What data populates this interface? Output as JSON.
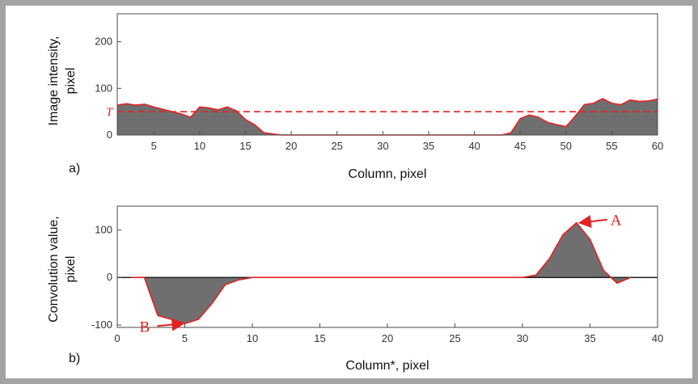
{
  "colors": {
    "fill": "#6f6f6f",
    "trace": "#e32222",
    "threshold": "#e32222",
    "axis": "#4a4a4a"
  },
  "chart_data": [
    {
      "type": "area",
      "panel": "a)",
      "xlabel": "Column, pixel",
      "ylabel": [
        "Image intensity,",
        "pixel"
      ],
      "xlim": [
        1,
        60
      ],
      "ylim": [
        0,
        260
      ],
      "xticks": [
        5,
        10,
        15,
        20,
        25,
        30,
        35,
        40,
        45,
        50,
        55,
        60
      ],
      "yticks": [
        0,
        100,
        200
      ],
      "threshold": {
        "label": "T",
        "value": 50
      },
      "x": [
        1,
        2,
        3,
        4,
        5,
        6,
        7,
        8,
        9,
        10,
        11,
        12,
        13,
        14,
        15,
        16,
        17,
        18,
        19,
        20,
        25,
        30,
        35,
        40,
        43,
        44,
        45,
        46,
        47,
        48,
        49,
        50,
        51,
        52,
        53,
        54,
        55,
        56,
        57,
        58,
        59,
        60
      ],
      "values": [
        64,
        67,
        64,
        66,
        60,
        55,
        50,
        45,
        38,
        60,
        58,
        54,
        60,
        52,
        33,
        22,
        5,
        2,
        0,
        0,
        0,
        0,
        0,
        0,
        0,
        5,
        35,
        43,
        38,
        27,
        22,
        18,
        40,
        65,
        68,
        78,
        68,
        65,
        75,
        72,
        73,
        77
      ]
    },
    {
      "type": "area",
      "panel": "b)",
      "xlabel": "Column*, pixel",
      "ylabel": [
        "Convolution value,",
        "pixel"
      ],
      "xlim": [
        0,
        40
      ],
      "ylim": [
        -105,
        150
      ],
      "xticks": [
        0,
        5,
        10,
        15,
        20,
        25,
        30,
        35,
        40
      ],
      "yticks": [
        -100,
        0,
        100
      ],
      "x": [
        1,
        2,
        3,
        4,
        5,
        6,
        7,
        8,
        9,
        10,
        30,
        31,
        32,
        33,
        34,
        35,
        36,
        37,
        38
      ],
      "values": [
        0,
        0,
        -80,
        -88,
        -97,
        -88,
        -55,
        -15,
        -5,
        0,
        0,
        5,
        40,
        90,
        115,
        80,
        15,
        -12,
        0
      ],
      "annotations": [
        {
          "label": "A",
          "x": 34,
          "y": 115
        },
        {
          "label": "B",
          "x": 5,
          "y": -97
        }
      ]
    }
  ]
}
